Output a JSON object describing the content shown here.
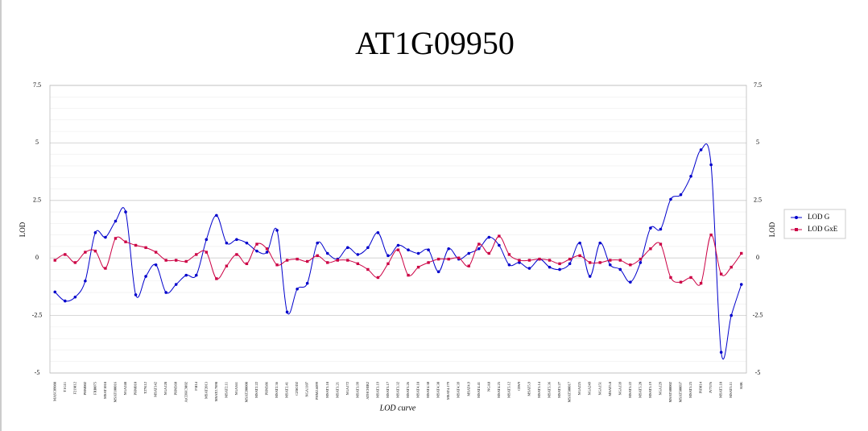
{
  "chart_data": {
    "type": "line",
    "title": "AT1G09950",
    "xlabel": "LOD curve",
    "ylabel": "LOD",
    "y2label": "LOD",
    "categories": [
      "MASC09088",
      "T1G11",
      "F21M12",
      "PHM002",
      "FRI0075",
      "MSAT1018",
      "MSAT100016",
      "NGA248",
      "PHM010",
      "T27K12",
      "MSAT142",
      "NGA128",
      "PHM360",
      "AtCDHCM02",
      "F5I14",
      "MSAT2013",
      "MSAT2.7898",
      "MSAT2.11",
      "NGA361",
      "MSAT200008",
      "MSAT2.22",
      "PHM386",
      "MSAT2.36",
      "MSAT2.41",
      "CZSOD2",
      "NGA1107",
      "PHM2.6099",
      "MSAT3.18",
      "MSAT3.21",
      "NGA172",
      "MSAT3.99",
      "ATHCHIB2",
      "MSAT3.19",
      "MSAT3.17",
      "MSAT3.32",
      "MSAT3.26",
      "MSAT4.18",
      "MSAT4.30",
      "MSAT4.38",
      "MSAT4.179",
      "MSAT4.39",
      "MSAT4.9",
      "MSAT4.41",
      "NGA8",
      "MSAT4.25",
      "MSAT5.12",
      "CIW9",
      "MSAT5.9",
      "MSAT5.14",
      "MSAT5.36",
      "MSAT5.27",
      "MSAT500017",
      "NGA225",
      "NGA249",
      "NGA151",
      "MSAT5.8",
      "NGA139",
      "MSAT5.22",
      "MSAT5.20",
      "MSAT5.19",
      "NGA129",
      "MSAT500002",
      "MSAT500037",
      "MSAT5.23",
      "PHM14",
      "JV7576",
      "MSAT5.18",
      "MSAT5.11",
      "K8K"
    ],
    "series": [
      {
        "name": "LOD G",
        "color": "#0000cc",
        "values": [
          -1.48,
          -1.87,
          -1.7,
          -1.0,
          1.1,
          0.9,
          1.6,
          2.0,
          -1.6,
          -0.8,
          -0.3,
          -1.5,
          -1.15,
          -0.75,
          -0.75,
          0.8,
          1.85,
          0.65,
          0.8,
          0.65,
          0.3,
          0.25,
          1.2,
          -2.35,
          -1.35,
          -1.1,
          0.65,
          0.2,
          -0.05,
          0.45,
          0.15,
          0.45,
          1.1,
          0.1,
          0.55,
          0.35,
          0.2,
          0.35,
          -0.6,
          0.4,
          -0.05,
          0.2,
          0.4,
          0.9,
          0.55,
          -0.3,
          -0.2,
          -0.45,
          -0.05,
          -0.4,
          -0.5,
          -0.25,
          0.65,
          -0.8,
          0.65,
          -0.3,
          -0.5,
          -1.05,
          -0.2,
          1.3,
          1.25,
          2.55,
          2.75,
          3.55,
          4.7,
          4.05,
          -4.1,
          -2.5,
          -1.15
        ]
      },
      {
        "name": "LOD GxE",
        "color": "#cc0044",
        "values": [
          -0.1,
          0.15,
          -0.2,
          0.25,
          0.3,
          -0.45,
          0.85,
          0.7,
          0.55,
          0.45,
          0.25,
          -0.1,
          -0.1,
          -0.15,
          0.15,
          0.25,
          -0.9,
          -0.35,
          0.15,
          -0.25,
          0.6,
          0.4,
          -0.3,
          -0.1,
          -0.05,
          -0.15,
          0.1,
          -0.2,
          -0.1,
          -0.1,
          -0.25,
          -0.5,
          -0.85,
          -0.25,
          0.35,
          -0.75,
          -0.4,
          -0.2,
          -0.05,
          -0.05,
          0.0,
          -0.35,
          0.6,
          0.2,
          0.95,
          0.15,
          -0.1,
          -0.1,
          -0.05,
          -0.1,
          -0.25,
          -0.05,
          0.1,
          -0.2,
          -0.2,
          -0.1,
          -0.1,
          -0.3,
          -0.05,
          0.4,
          0.6,
          -0.85,
          -1.05,
          -0.85,
          -1.1,
          1.0,
          -0.7,
          -0.4,
          0.2
        ]
      }
    ],
    "ylim": [
      -5,
      7.5
    ],
    "yticks": [
      -5,
      -2.5,
      0,
      2.5,
      5,
      7.5
    ],
    "y2lim": [
      -5,
      7.5
    ],
    "y2ticks": [
      -5,
      -2.5,
      0,
      2.5,
      5,
      7.5
    ],
    "grid": true,
    "legend": "right"
  }
}
